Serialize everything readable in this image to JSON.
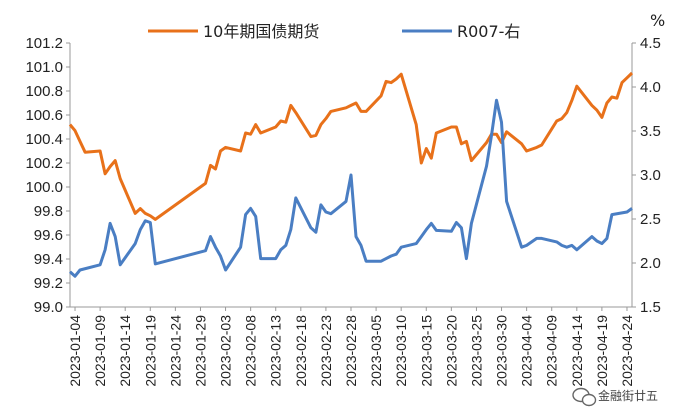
{
  "chart_data": {
    "type": "line",
    "title": "",
    "left_axis": {
      "ticks": [
        99.0,
        99.2,
        99.4,
        99.6,
        99.8,
        100.0,
        100.2,
        100.4,
        100.6,
        100.8,
        101.0,
        101.2
      ],
      "ylim": [
        99.0,
        101.2
      ]
    },
    "right_axis": {
      "unit": "%",
      "ticks": [
        1.5,
        2.0,
        2.5,
        3.0,
        3.5,
        4.0,
        4.5
      ],
      "ylim": [
        1.5,
        4.5
      ]
    },
    "x_tick_labels": [
      "2023-01-04",
      "2023-01-09",
      "2023-01-14",
      "2023-01-19",
      "2023-01-24",
      "2023-01-29",
      "2023-02-03",
      "2023-02-08",
      "2023-02-13",
      "2023-02-18",
      "2023-02-23",
      "2023-02-28",
      "2023-03-05",
      "2023-03-10",
      "2023-03-15",
      "2023-03-20",
      "2023-03-25",
      "2023-03-30",
      "2023-04-04",
      "2023-04-09",
      "2023-04-14",
      "2023-04-19",
      "2023-04-24"
    ],
    "xrange": [
      "2023-01-03",
      "2023-04-25"
    ],
    "legend_position": "top",
    "series": [
      {
        "name": "10年期国债期货",
        "axis": "left",
        "color": "#E8711A",
        "points": [
          [
            "2023-01-03",
            100.52
          ],
          [
            "2023-01-04",
            100.47
          ],
          [
            "2023-01-05",
            100.38
          ],
          [
            "2023-01-06",
            100.29
          ],
          [
            "2023-01-09",
            100.3
          ],
          [
            "2023-01-10",
            100.11
          ],
          [
            "2023-01-11",
            100.17
          ],
          [
            "2023-01-12",
            100.22
          ],
          [
            "2023-01-13",
            100.07
          ],
          [
            "2023-01-16",
            99.78
          ],
          [
            "2023-01-17",
            99.82
          ],
          [
            "2023-01-18",
            99.78
          ],
          [
            "2023-01-19",
            99.76
          ],
          [
            "2023-01-20",
            99.73
          ],
          [
            "2023-01-30",
            100.03
          ],
          [
            "2023-01-31",
            100.18
          ],
          [
            "2023-02-01",
            100.15
          ],
          [
            "2023-02-02",
            100.3
          ],
          [
            "2023-02-03",
            100.33
          ],
          [
            "2023-02-06",
            100.3
          ],
          [
            "2023-02-07",
            100.45
          ],
          [
            "2023-02-08",
            100.44
          ],
          [
            "2023-02-09",
            100.52
          ],
          [
            "2023-02-10",
            100.45
          ],
          [
            "2023-02-13",
            100.5
          ],
          [
            "2023-02-14",
            100.55
          ],
          [
            "2023-02-15",
            100.54
          ],
          [
            "2023-02-16",
            100.68
          ],
          [
            "2023-02-17",
            100.62
          ],
          [
            "2023-02-20",
            100.42
          ],
          [
            "2023-02-21",
            100.43
          ],
          [
            "2023-02-22",
            100.52
          ],
          [
            "2023-02-23",
            100.57
          ],
          [
            "2023-02-24",
            100.63
          ],
          [
            "2023-02-27",
            100.66
          ],
          [
            "2023-02-28",
            100.68
          ],
          [
            "2023-03-01",
            100.7
          ],
          [
            "2023-03-02",
            100.63
          ],
          [
            "2023-03-03",
            100.63
          ],
          [
            "2023-03-06",
            100.76
          ],
          [
            "2023-03-07",
            100.88
          ],
          [
            "2023-03-08",
            100.87
          ],
          [
            "2023-03-09",
            100.9
          ],
          [
            "2023-03-10",
            100.94
          ],
          [
            "2023-03-13",
            100.52
          ],
          [
            "2023-03-14",
            100.2
          ],
          [
            "2023-03-15",
            100.32
          ],
          [
            "2023-03-16",
            100.24
          ],
          [
            "2023-03-17",
            100.45
          ],
          [
            "2023-03-20",
            100.5
          ],
          [
            "2023-03-21",
            100.5
          ],
          [
            "2023-03-22",
            100.36
          ],
          [
            "2023-03-23",
            100.38
          ],
          [
            "2023-03-24",
            100.22
          ],
          [
            "2023-03-27",
            100.37
          ],
          [
            "2023-03-28",
            100.44
          ],
          [
            "2023-03-29",
            100.44
          ],
          [
            "2023-03-30",
            100.37
          ],
          [
            "2023-03-31",
            100.46
          ],
          [
            "2023-04-03",
            100.36
          ],
          [
            "2023-04-04",
            100.3
          ],
          [
            "2023-04-06",
            100.33
          ],
          [
            "2023-04-07",
            100.35
          ],
          [
            "2023-04-10",
            100.55
          ],
          [
            "2023-04-11",
            100.57
          ],
          [
            "2023-04-12",
            100.62
          ],
          [
            "2023-04-13",
            100.72
          ],
          [
            "2023-04-14",
            100.84
          ],
          [
            "2023-04-17",
            100.68
          ],
          [
            "2023-04-18",
            100.64
          ],
          [
            "2023-04-19",
            100.58
          ],
          [
            "2023-04-20",
            100.7
          ],
          [
            "2023-04-21",
            100.75
          ],
          [
            "2023-04-22",
            100.74
          ],
          [
            "2023-04-23",
            100.87
          ],
          [
            "2023-04-24",
            100.91
          ],
          [
            "2023-04-25",
            100.95
          ]
        ]
      },
      {
        "name": "R007-右",
        "axis": "right",
        "color": "#4A7EC3",
        "points": [
          [
            "2023-01-03",
            1.9
          ],
          [
            "2023-01-04",
            1.85
          ],
          [
            "2023-01-05",
            1.92
          ],
          [
            "2023-01-09",
            1.98
          ],
          [
            "2023-01-10",
            2.15
          ],
          [
            "2023-01-11",
            2.45
          ],
          [
            "2023-01-12",
            2.3
          ],
          [
            "2023-01-13",
            1.98
          ],
          [
            "2023-01-16",
            2.22
          ],
          [
            "2023-01-17",
            2.38
          ],
          [
            "2023-01-18",
            2.48
          ],
          [
            "2023-01-19",
            2.46
          ],
          [
            "2023-01-20",
            1.99
          ],
          [
            "2023-01-30",
            2.14
          ],
          [
            "2023-01-31",
            2.3
          ],
          [
            "2023-02-01",
            2.18
          ],
          [
            "2023-02-02",
            2.08
          ],
          [
            "2023-02-03",
            1.92
          ],
          [
            "2023-02-06",
            2.18
          ],
          [
            "2023-02-07",
            2.55
          ],
          [
            "2023-02-08",
            2.62
          ],
          [
            "2023-02-09",
            2.53
          ],
          [
            "2023-02-10",
            2.05
          ],
          [
            "2023-02-13",
            2.05
          ],
          [
            "2023-02-14",
            2.15
          ],
          [
            "2023-02-15",
            2.2
          ],
          [
            "2023-02-16",
            2.38
          ],
          [
            "2023-02-17",
            2.74
          ],
          [
            "2023-02-20",
            2.4
          ],
          [
            "2023-02-21",
            2.35
          ],
          [
            "2023-02-22",
            2.66
          ],
          [
            "2023-02-23",
            2.58
          ],
          [
            "2023-02-24",
            2.56
          ],
          [
            "2023-02-27",
            2.7
          ],
          [
            "2023-02-28",
            3.0
          ],
          [
            "2023-03-01",
            2.3
          ],
          [
            "2023-03-02",
            2.2
          ],
          [
            "2023-03-03",
            2.02
          ],
          [
            "2023-03-06",
            2.02
          ],
          [
            "2023-03-07",
            2.05
          ],
          [
            "2023-03-08",
            2.08
          ],
          [
            "2023-03-09",
            2.1
          ],
          [
            "2023-03-10",
            2.18
          ],
          [
            "2023-03-13",
            2.22
          ],
          [
            "2023-03-14",
            2.3
          ],
          [
            "2023-03-15",
            2.38
          ],
          [
            "2023-03-16",
            2.45
          ],
          [
            "2023-03-17",
            2.37
          ],
          [
            "2023-03-20",
            2.36
          ],
          [
            "2023-03-21",
            2.46
          ],
          [
            "2023-03-22",
            2.4
          ],
          [
            "2023-03-23",
            2.05
          ],
          [
            "2023-03-24",
            2.45
          ],
          [
            "2023-03-27",
            3.1
          ],
          [
            "2023-03-28",
            3.45
          ],
          [
            "2023-03-29",
            3.85
          ],
          [
            "2023-03-30",
            3.6
          ],
          [
            "2023-03-31",
            2.7
          ],
          [
            "2023-04-03",
            2.18
          ],
          [
            "2023-04-04",
            2.2
          ],
          [
            "2023-04-06",
            2.28
          ],
          [
            "2023-04-07",
            2.28
          ],
          [
            "2023-04-10",
            2.24
          ],
          [
            "2023-04-11",
            2.2
          ],
          [
            "2023-04-12",
            2.18
          ],
          [
            "2023-04-13",
            2.2
          ],
          [
            "2023-04-14",
            2.15
          ],
          [
            "2023-04-17",
            2.3
          ],
          [
            "2023-04-18",
            2.25
          ],
          [
            "2023-04-19",
            2.22
          ],
          [
            "2023-04-20",
            2.28
          ],
          [
            "2023-04-21",
            2.55
          ],
          [
            "2023-04-24",
            2.58
          ],
          [
            "2023-04-25",
            2.62
          ]
        ]
      }
    ]
  },
  "watermark": {
    "text": "金融街廿五",
    "icon": "wechat-icon"
  }
}
